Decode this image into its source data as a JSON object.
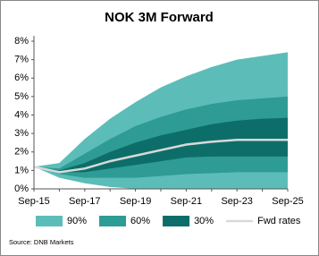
{
  "chart_data": {
    "type": "fan",
    "title": "NOK 3M Forward",
    "source": "Source: DNB Markets",
    "categories": [
      "Sep-15",
      null,
      "Sep-17",
      null,
      "Sep-19",
      null,
      "Sep-21",
      null,
      "Sep-23",
      null,
      "Sep-25"
    ],
    "ylim": [
      0,
      8
    ],
    "yticks": [
      {
        "value": 0,
        "label": "0%"
      },
      {
        "value": 1,
        "label": "1%"
      },
      {
        "value": 2,
        "label": "2%"
      },
      {
        "value": 3,
        "label": "3%"
      },
      {
        "value": 4,
        "label": "4%"
      },
      {
        "value": 5,
        "label": "5%"
      },
      {
        "value": 6,
        "label": "6%"
      },
      {
        "value": 7,
        "label": "7%"
      },
      {
        "value": 8,
        "label": "8%"
      }
    ],
    "grid": false,
    "series": [
      {
        "name": "90%",
        "kind": "band",
        "color": "#5cbdb8",
        "low": [
          1.2,
          0.6,
          0.3,
          0.1,
          0,
          0,
          0,
          0,
          0,
          0,
          0
        ],
        "high": [
          1.2,
          1.4,
          2.7,
          3.8,
          4.7,
          5.5,
          6.1,
          6.6,
          7.0,
          7.2,
          7.4
        ]
      },
      {
        "name": "60%",
        "kind": "band",
        "color": "#2e9b95",
        "low": [
          1.2,
          0.8,
          0.6,
          0.6,
          0.6,
          0.7,
          0.8,
          0.85,
          0.9,
          0.9,
          0.9
        ],
        "high": [
          1.2,
          1.1,
          1.9,
          2.7,
          3.4,
          3.9,
          4.3,
          4.6,
          4.8,
          4.9,
          5.0
        ]
      },
      {
        "name": "30%",
        "kind": "band",
        "color": "#0d6e69",
        "low": [
          1.2,
          0.9,
          0.9,
          1.1,
          1.3,
          1.5,
          1.7,
          1.75,
          1.75,
          1.75,
          1.75
        ],
        "high": [
          1.2,
          1.0,
          1.4,
          2.0,
          2.5,
          2.9,
          3.2,
          3.5,
          3.7,
          3.8,
          3.85
        ]
      },
      {
        "name": "Fwd rates",
        "kind": "line",
        "color": "#d9d9d9",
        "values": [
          1.2,
          0.9,
          1.1,
          1.5,
          1.8,
          2.1,
          2.4,
          2.55,
          2.65,
          2.65,
          2.65
        ]
      }
    ]
  }
}
